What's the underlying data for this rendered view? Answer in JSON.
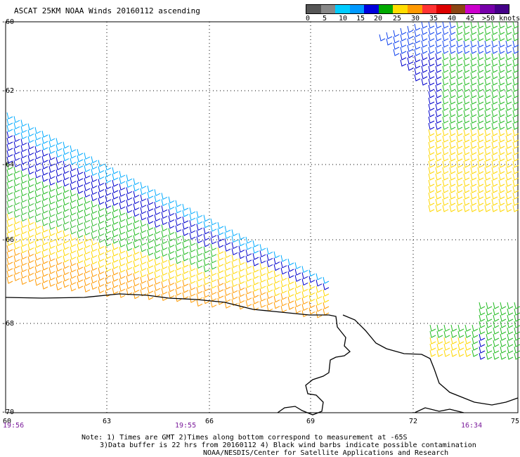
{
  "title": "ASCAT 25KM NOAA Winds 20160112 ascending",
  "legend": {
    "labels": [
      "0",
      "5",
      "10",
      "15",
      "20",
      "25",
      "30",
      "35",
      "40",
      "45",
      ">50 knots"
    ],
    "colors": [
      "#555555",
      "#888888",
      "#00ccff",
      "#0099ff",
      "#0000dd",
      "#00aa00",
      "#ffdd00",
      "#ff9900",
      "#ff3333",
      "#dd0000",
      "#8b4513",
      "#cc00cc",
      "#7700aa",
      "#440088"
    ]
  },
  "map": {
    "y_labels": [
      "-60",
      "-62",
      "-64",
      "-66",
      "-68",
      "-70"
    ],
    "x_labels": [
      "60",
      "63",
      "66",
      "69",
      "72",
      "75"
    ],
    "time_labels": [
      "19:56",
      "19:55",
      "16:34"
    ]
  },
  "notes": {
    "line1": "Note: 1) Times are GMT 2)Times along bottom correspond to measurement at -65S",
    "line2": "3)Data buffer is 22 hrs from 20160112 4) Black wind barbs indicate possible contamination",
    "line3": "NOAA/NESDIS/Center for Satellite Applications and Research"
  }
}
